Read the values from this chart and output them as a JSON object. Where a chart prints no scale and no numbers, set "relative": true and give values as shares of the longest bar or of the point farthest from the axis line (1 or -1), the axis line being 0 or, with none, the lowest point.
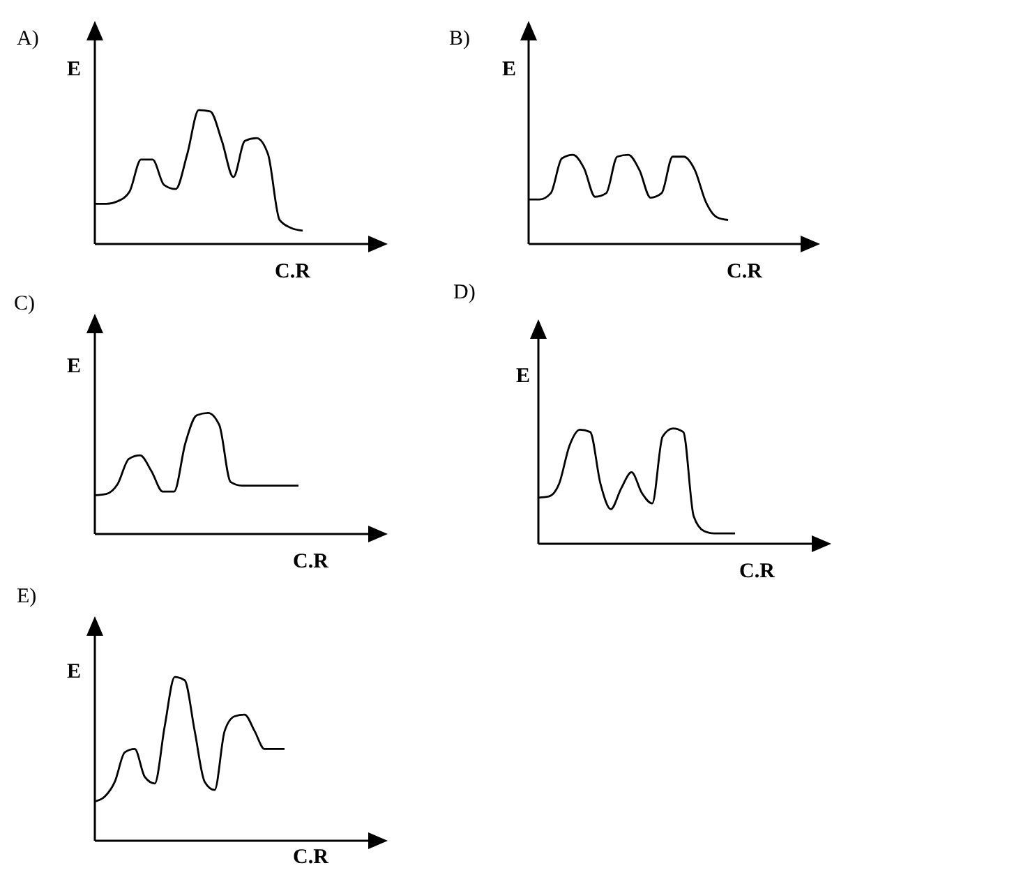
{
  "chart_data": [
    {
      "type": "line",
      "title": "A)",
      "xlabel": "C.R",
      "ylabel": "E",
      "relative": true,
      "categories": [
        null,
        null,
        null,
        null,
        null,
        null,
        null,
        null,
        null,
        null,
        null,
        null,
        null,
        null,
        null,
        null,
        null,
        null,
        null
      ],
      "series": [
        {
          "color": "#000000",
          "values": [
            0.3,
            0.3,
            0.32,
            0.39,
            0.63,
            0.63,
            0.44,
            0.41,
            0.67,
            1,
            0.99,
            0.77,
            0.5,
            0.77,
            0.79,
            0.67,
            0.18,
            0.12,
            0.1
          ]
        }
      ],
      "marker": "none",
      "line_style": "solid",
      "grid": false,
      "legend": false
    },
    {
      "type": "line",
      "title": "B)",
      "xlabel": "C.R",
      "ylabel": "E",
      "relative": true,
      "categories": [
        null,
        null,
        null,
        null,
        null,
        null,
        null,
        null,
        null,
        null,
        null,
        null,
        null,
        null,
        null,
        null,
        null,
        null,
        null
      ],
      "series": [
        {
          "color": "#000000",
          "values": [
            0.5,
            0.5,
            0.57,
            0.96,
            1,
            0.85,
            0.53,
            0.57,
            0.98,
            1,
            0.83,
            0.52,
            0.57,
            0.98,
            0.98,
            0.83,
            0.47,
            0.3,
            0.27
          ]
        }
      ],
      "marker": "none",
      "line_style": "solid",
      "grid": false,
      "legend": false
    },
    {
      "type": "line",
      "title": "C)",
      "xlabel": "C.R",
      "ylabel": "E",
      "relative": true,
      "categories": [
        null,
        null,
        null,
        null,
        null,
        null,
        null,
        null,
        null,
        null,
        null,
        null,
        null,
        null,
        null,
        null,
        null,
        null,
        null
      ],
      "series": [
        {
          "color": "#000000",
          "values": [
            0.32,
            0.33,
            0.41,
            0.62,
            0.65,
            0.52,
            0.35,
            0.35,
            0.75,
            0.98,
            1,
            0.9,
            0.43,
            0.4,
            0.4,
            0.4,
            0.4,
            0.4,
            0.4
          ]
        }
      ],
      "marker": "none",
      "line_style": "solid",
      "grid": false,
      "legend": false
    },
    {
      "type": "line",
      "title": "D)",
      "xlabel": "C.R",
      "ylabel": "E",
      "relative": true,
      "categories": [
        null,
        null,
        null,
        null,
        null,
        null,
        null,
        null,
        null,
        null,
        null,
        null,
        null,
        null,
        null,
        null,
        null,
        null,
        null,
        null
      ],
      "series": [
        {
          "color": "#000000",
          "values": [
            0.4,
            0.41,
            0.52,
            0.85,
            0.99,
            0.97,
            0.52,
            0.3,
            0.48,
            0.62,
            0.44,
            0.35,
            0.93,
            1,
            0.97,
            0.24,
            0.11,
            0.09,
            0.09,
            0.09
          ]
        }
      ],
      "marker": "none",
      "line_style": "solid",
      "grid": false,
      "legend": false
    },
    {
      "type": "line",
      "title": "E)",
      "xlabel": "C.R",
      "ylabel": "E",
      "relative": true,
      "categories": [
        null,
        null,
        null,
        null,
        null,
        null,
        null,
        null,
        null,
        null,
        null,
        null,
        null,
        null,
        null,
        null,
        null,
        null,
        null,
        null
      ],
      "series": [
        {
          "color": "#000000",
          "values": [
            0.24,
            0.27,
            0.36,
            0.54,
            0.56,
            0.39,
            0.35,
            0.7,
            1,
            0.98,
            0.67,
            0.36,
            0.31,
            0.67,
            0.76,
            0.77,
            0.67,
            0.56,
            0.56,
            0.56
          ]
        }
      ],
      "marker": "none",
      "line_style": "solid",
      "grid": false,
      "legend": false
    }
  ]
}
